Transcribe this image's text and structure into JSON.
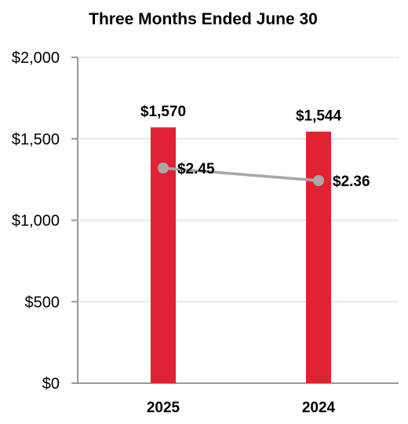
{
  "chart_data": {
    "type": "bar",
    "title": "Three Months Ended June 30",
    "categories": [
      "2025",
      "2024"
    ],
    "ylim": [
      0,
      2000
    ],
    "yticks": [
      0,
      500,
      1000,
      1500,
      2000
    ],
    "ytick_labels": [
      "$0",
      "$500",
      "$1,000",
      "$1,500",
      "$2,000"
    ],
    "grid": true,
    "series": [
      {
        "type": "bar",
        "values": [
          1570,
          1544
        ],
        "labels": [
          "$1,570",
          "$1,544"
        ],
        "color": "#e02233"
      },
      {
        "type": "line",
        "values": [
          2.45,
          2.36
        ],
        "labels": [
          "$2.45",
          "$2.36"
        ],
        "color": "#a8a8a8"
      }
    ]
  }
}
